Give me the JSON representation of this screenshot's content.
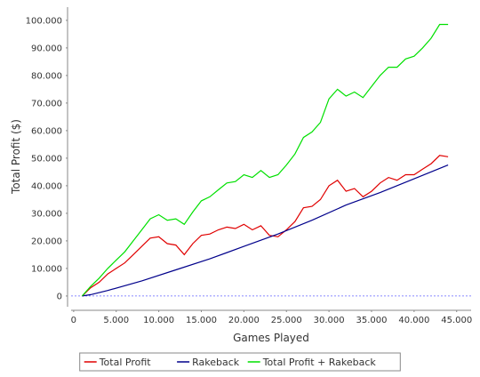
{
  "chart_data": {
    "type": "line",
    "xlabel": "Games Played",
    "ylabel": "Total Profit ($)",
    "xlim": [
      -300,
      46700
    ],
    "ylim": [
      -3900,
      104800
    ],
    "xticks": [
      0,
      {
        "value": 5000,
        "label": "5.000"
      },
      {
        "value": 10000,
        "label": "10.000"
      },
      {
        "value": 15000,
        "label": "15.000"
      },
      {
        "value": 20000,
        "label": "20.000"
      },
      {
        "value": 25000,
        "label": "25.000"
      },
      {
        "value": 30000,
        "label": "30.000"
      },
      {
        "value": 35000,
        "label": "35.000"
      },
      {
        "value": 40000,
        "label": "40.000"
      },
      {
        "value": 45000,
        "label": "45.000"
      }
    ],
    "yticks": [
      0,
      {
        "value": 10000,
        "label": "10.000"
      },
      {
        "value": 20000,
        "label": "20.000"
      },
      {
        "value": 30000,
        "label": "30.000"
      },
      {
        "value": 40000,
        "label": "40.000"
      },
      {
        "value": 50000,
        "label": "50.000"
      },
      {
        "value": 60000,
        "label": "60.000"
      },
      {
        "value": 70000,
        "label": "70.000"
      },
      {
        "value": 80000,
        "label": "80.000"
      },
      {
        "value": 90000,
        "label": "90.000"
      },
      {
        "value": 100000,
        "label": "100.000"
      }
    ],
    "series": [
      {
        "name": "Total Profit",
        "color": "#e00000",
        "x": [
          1000,
          2000,
          3000,
          4000,
          5000,
          6000,
          7000,
          8000,
          9000,
          10000,
          11000,
          12000,
          13000,
          14000,
          15000,
          16000,
          17000,
          18000,
          19000,
          20000,
          21000,
          22000,
          23000,
          24000,
          25000,
          26000,
          27000,
          28000,
          29000,
          30000,
          31000,
          32000,
          33000,
          34000,
          35000,
          36000,
          37000,
          38000,
          39000,
          40000,
          41000,
          42000,
          43000,
          44000
        ],
        "values": [
          0,
          3000,
          5000,
          8000,
          10000,
          12000,
          15000,
          18000,
          21000,
          21500,
          19000,
          18500,
          15000,
          19000,
          22000,
          22500,
          24000,
          25000,
          24500,
          26000,
          24000,
          25500,
          22000,
          21500,
          24000,
          27000,
          32000,
          32500,
          35000,
          40000,
          42000,
          38000,
          39000,
          36000,
          38000,
          41000,
          43000,
          42000,
          44000,
          44000,
          46000,
          48000,
          51000,
          50500
        ]
      },
      {
        "name": "Rakeback",
        "color": "#00008b",
        "x": [
          1000,
          2000,
          4000,
          8000,
          12000,
          16000,
          20000,
          24000,
          28000,
          32000,
          36000,
          40000,
          44000
        ],
        "values": [
          0,
          500,
          2000,
          5500,
          9500,
          13500,
          18000,
          22500,
          27500,
          33000,
          37500,
          42500,
          47500
        ]
      },
      {
        "name": "Total Profit + Rakeback",
        "color": "#00e000",
        "x": [
          1000,
          2000,
          3000,
          4000,
          5000,
          6000,
          7000,
          8000,
          9000,
          10000,
          11000,
          12000,
          13000,
          14000,
          15000,
          16000,
          17000,
          18000,
          19000,
          20000,
          21000,
          22000,
          23000,
          24000,
          25000,
          26000,
          27000,
          28000,
          29000,
          30000,
          31000,
          32000,
          33000,
          34000,
          35000,
          36000,
          37000,
          38000,
          39000,
          40000,
          41000,
          42000,
          43000,
          44000
        ],
        "values": [
          0,
          3500,
          6500,
          10000,
          13000,
          16000,
          20000,
          24000,
          28000,
          29500,
          27500,
          28000,
          26000,
          30500,
          34500,
          36000,
          38500,
          41000,
          41500,
          44000,
          43000,
          45500,
          43000,
          44000,
          47500,
          51500,
          57500,
          59500,
          63000,
          71500,
          75000,
          72500,
          74000,
          72000,
          76000,
          80000,
          83000,
          83000,
          86000,
          87000,
          90000,
          93500,
          98500,
          98500
        ]
      }
    ]
  }
}
